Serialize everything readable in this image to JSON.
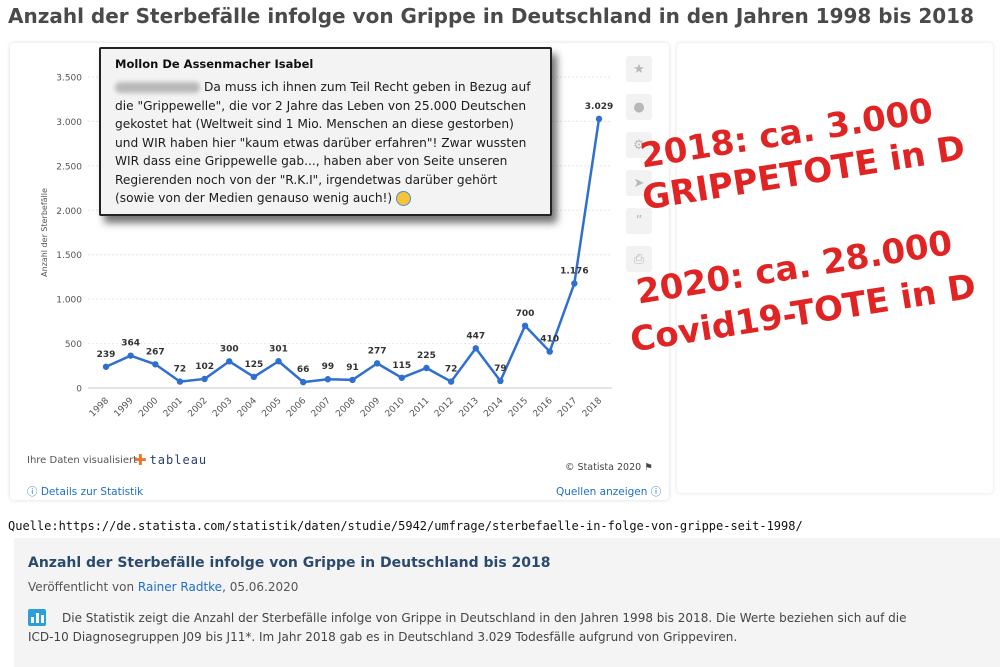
{
  "page": {
    "title": "Anzahl der Sterbefälle infolge von Grippe in Deutschland in den Jahren 1998 bis 2018"
  },
  "toolbar": {
    "icons": [
      "star-icon",
      "bell-icon",
      "gear-icon",
      "share-icon",
      "quote-icon",
      "print-icon"
    ]
  },
  "chart_data": {
    "type": "line",
    "title": "",
    "xlabel": "",
    "ylabel": "Anzahl der Sterbefälle",
    "categories": [
      "1998",
      "1999",
      "2000",
      "2001",
      "2002",
      "2003",
      "2004",
      "2005",
      "2006",
      "2007",
      "2008",
      "2009",
      "2010",
      "2011",
      "2012",
      "2013",
      "2014",
      "2015",
      "2016",
      "2017",
      "2018"
    ],
    "series": [
      {
        "values": [
          239,
          364,
          267,
          72,
          102,
          300,
          125,
          301,
          66,
          99,
          91,
          277,
          115,
          225,
          72,
          447,
          79,
          700,
          410,
          1176,
          3029
        ]
      }
    ],
    "data_labels": [
      "239",
      "364",
      "267",
      "72",
      "102",
      "300",
      "125",
      "301",
      "66",
      "99",
      "91",
      "277",
      "115",
      "225",
      "72",
      "447",
      "79",
      "700",
      "410",
      "1.176",
      "3.029"
    ],
    "ylim": [
      0,
      3500
    ],
    "yticks": [
      0,
      500,
      1000,
      1500,
      2000,
      2500,
      3000,
      3500
    ],
    "ytick_labels": [
      "0",
      "500",
      "1.000",
      "1.500",
      "2.000",
      "2.500",
      "3.000",
      "3.500"
    ],
    "grid": true,
    "legend": "none",
    "line_color": "#2f6fd0"
  },
  "footer": {
    "viz_label": "Ihre Daten visualisiert",
    "tableau_word": "tableau",
    "credit": "© Statista 2020",
    "details_link": "Details zur Statistik",
    "sources_link": "Quellen anzeigen"
  },
  "source_line": "Quelle:https://de.statista.com/statistik/daten/studie/5942/umfrage/sterbefaelle-in-folge-von-grippe-seit-1998/",
  "bottom": {
    "title": "Anzahl der Sterbefälle infolge von Grippe in Deutschland bis 2018",
    "published_prefix": "Veröffentlicht von",
    "author": "Rainer Radtke",
    "published_date": ", 05.06.2020",
    "description": "Die Statistik zeigt die Anzahl der Sterbefälle infolge von Grippe in Deutschland in den Jahren 1998 bis 2018. Die Werte beziehen sich auf die ICD-10 Diagnosegruppen J09 bis J11*. Im Jahr 2018 gab es in Deutschland 3.029 Todesfälle aufgrund von Grippeviren."
  },
  "comment": {
    "author": "Mollon De Assenmacher Isabel",
    "text": "Da muss ich ihnen zum Teil Recht geben in Bezug auf die \"Grippewelle\", die vor 2 Jahre das Leben von 25.000 Deutschen gekostet hat (Weltweit sind 1 Mio. Menschen an diese gestorben) und WIR haben hier \"kaum etwas darüber erfahren\"! Zwar wussten WIR dass eine Grippewelle gab..., haben aber von Seite unseren Regierenden noch von der \"R.K.I\", irgendetwas darüber gehört (sowie von der Medien genauso wenig auch!)"
  },
  "annotations": {
    "line1": "2018: ca. 3.000",
    "line2": "GRIPPETOTE in D",
    "line3": "2020: ca. 28.000",
    "line4": "Covid19-TOTE in D",
    "color": "#e02424"
  }
}
